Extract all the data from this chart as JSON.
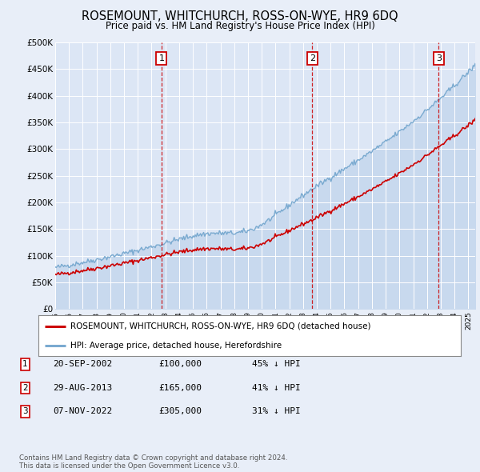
{
  "title": "ROSEMOUNT, WHITCHURCH, ROSS-ON-WYE, HR9 6DQ",
  "subtitle": "Price paid vs. HM Land Registry's House Price Index (HPI)",
  "bg_color": "#e8eef8",
  "plot_bg_color": "#dce6f5",
  "grid_color": "#ffffff",
  "ylim": [
    0,
    500000
  ],
  "yticks": [
    0,
    50000,
    100000,
    150000,
    200000,
    250000,
    300000,
    350000,
    400000,
    450000,
    500000
  ],
  "ytick_labels": [
    "£0",
    "£50K",
    "£100K",
    "£150K",
    "£200K",
    "£250K",
    "£300K",
    "£350K",
    "£400K",
    "£450K",
    "£500K"
  ],
  "xlim_start": 1995.0,
  "xlim_end": 2025.5,
  "sale_line_color": "#cc0000",
  "hpi_line_color": "#7aaad0",
  "hpi_fill_color": "#c8d9ee",
  "legend_label_sale": "ROSEMOUNT, WHITCHURCH, ROSS-ON-WYE, HR9 6DQ (detached house)",
  "legend_label_hpi": "HPI: Average price, detached house, Herefordshire",
  "vline_color": "#cc0000",
  "sales": [
    {
      "date_year": 2002.72,
      "price": 100000,
      "label": "1"
    },
    {
      "date_year": 2013.66,
      "price": 165000,
      "label": "2"
    },
    {
      "date_year": 2022.85,
      "price": 305000,
      "label": "3"
    }
  ],
  "table_rows": [
    {
      "num": "1",
      "date": "20-SEP-2002",
      "price": "£100,000",
      "change": "45% ↓ HPI"
    },
    {
      "num": "2",
      "date": "29-AUG-2013",
      "price": "£165,000",
      "change": "41% ↓ HPI"
    },
    {
      "num": "3",
      "date": "07-NOV-2022",
      "price": "£305,000",
      "change": "31% ↓ HPI"
    }
  ],
  "footer": "Contains HM Land Registry data © Crown copyright and database right 2024.\nThis data is licensed under the Open Government Licence v3.0.",
  "xlabel_years": [
    1995,
    1996,
    1997,
    1998,
    1999,
    2000,
    2001,
    2002,
    2003,
    2004,
    2005,
    2006,
    2007,
    2008,
    2009,
    2010,
    2011,
    2012,
    2013,
    2014,
    2015,
    2016,
    2017,
    2018,
    2019,
    2020,
    2021,
    2022,
    2023,
    2024,
    2025
  ]
}
